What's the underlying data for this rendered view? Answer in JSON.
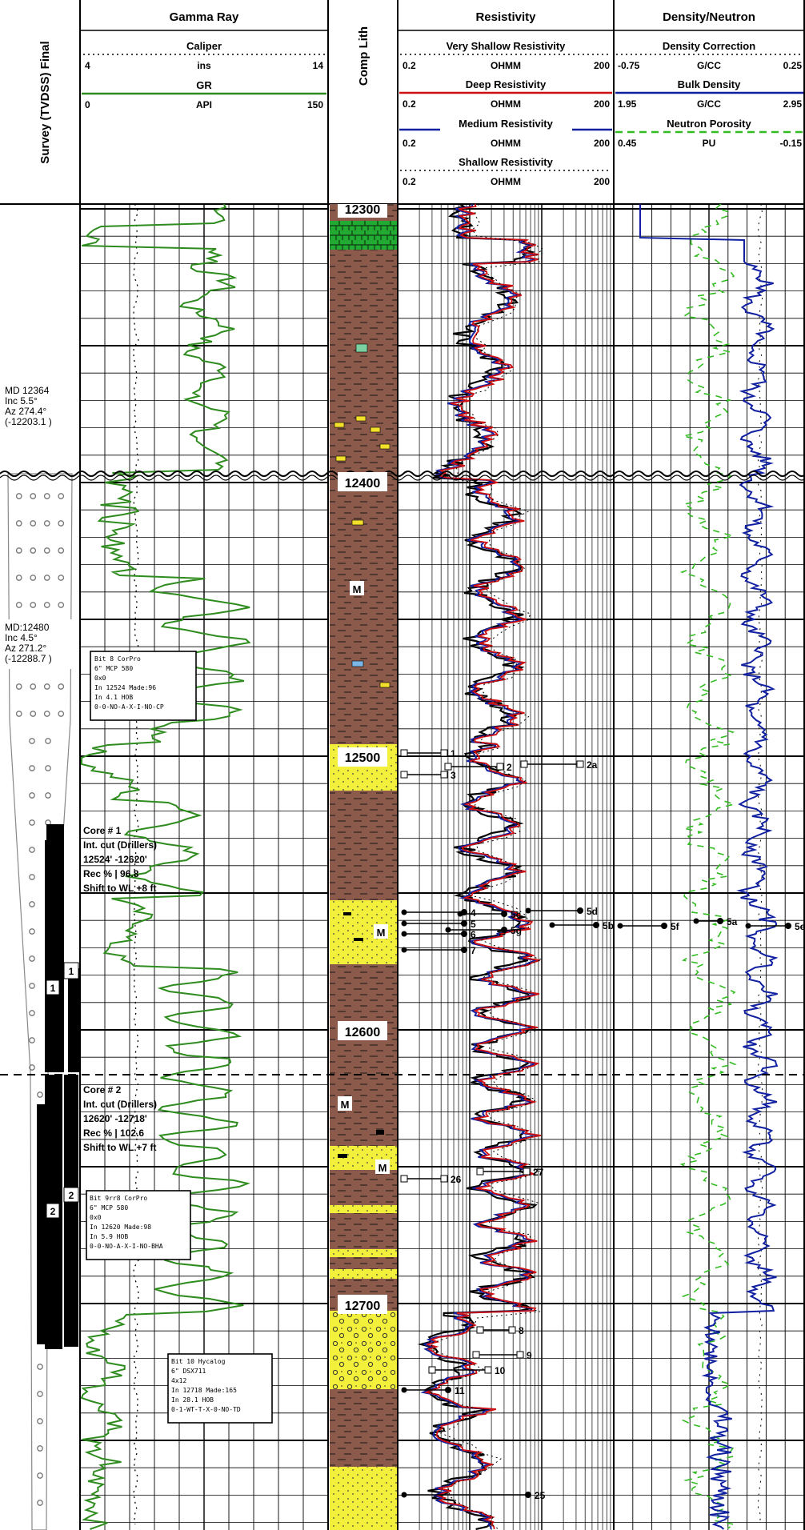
{
  "colors": {
    "gr": "#2e8b1e",
    "neutron": "#33bb22",
    "deep": "#d01010",
    "medium": "#1020a0",
    "shallow": "#000000",
    "bulk_density": "#1020a0",
    "shale": "#8b5a4a",
    "sand": "#f2f03a",
    "limestone": "#22aa33",
    "core": "#000000"
  },
  "tracks": {
    "survey": {
      "title": "Survey (TVDSS) Final"
    },
    "gamma": {
      "title": "Gamma Ray",
      "caliper": {
        "name": "Caliper",
        "min": "4",
        "unit": "ins",
        "max": "14"
      },
      "gr": {
        "name": "GR",
        "min": "0",
        "unit": "API",
        "max": "150"
      }
    },
    "lith": {
      "title": "Comp Lith"
    },
    "resistivity": {
      "title": "Resistivity",
      "very_shallow": {
        "name": "Very Shallow Resistivity",
        "min": "0.2",
        "unit": "OHMM",
        "max": "200"
      },
      "deep": {
        "name": "Deep Resistivity",
        "min": "0.2",
        "unit": "OHMM",
        "max": "200"
      },
      "medium": {
        "name": "Medium Resistivity",
        "min": "0.2",
        "unit": "OHMM",
        "max": "200"
      },
      "shallow": {
        "name": "Shallow Resistivity",
        "min": "0.2",
        "unit": "OHMM",
        "max": "200"
      }
    },
    "density": {
      "title": "Density/Neutron",
      "correction": {
        "name": "Density Correction",
        "min": "-0.75",
        "unit": "G/CC",
        "max": "0.25"
      },
      "bulk": {
        "name": "Bulk Density",
        "min": "1.95",
        "unit": "G/CC",
        "max": "2.95"
      },
      "neutron": {
        "name": "Neutron Porosity",
        "min": "0.45",
        "unit": "PU",
        "max": "-0.15"
      }
    }
  },
  "depths": [
    "12300",
    "12400",
    "12500",
    "12600",
    "12700"
  ],
  "surveys": [
    {
      "md": "MD 12364",
      "inc": "Inc 5.5°",
      "az": "Az 274.4°",
      "tvd": "(-12203.1 )"
    },
    {
      "md": "MD:12480",
      "inc": "Inc 4.5°",
      "az": "Az 271.2°",
      "tvd": "(-12288.7 )"
    }
  ],
  "cores": [
    {
      "title": "Core # 1",
      "cut": "Int. cut (Drillers)",
      "interval": "12524' -12620'",
      "rec": "Rec % | 96.8",
      "shift": "Shift to WL  +8 ft",
      "num": "1"
    },
    {
      "title": "Core # 2",
      "cut": "Int. cut (Drillers)",
      "interval": "12620' -12718'",
      "rec": "Rec % | 102.6",
      "shift": "Shift to WL  +7 ft",
      "num": "2"
    }
  ],
  "bit_boxes": [
    {
      "lines": [
        "Bit 8   CorPro",
        "6\"    MCP 580",
        "0x0",
        "In 12524  Made:96",
        "In 4.1    HOB",
        "0-0-NO-A-X-I-NO-CP"
      ]
    },
    {
      "lines": [
        "Bit 9rr8  CorPro",
        "6\"    MCP 580",
        "0x0",
        "In 12620  Made:98",
        "In 5.9    HOB",
        "0-0-NO-A-X-I-NO-BHA"
      ]
    },
    {
      "lines": [
        "Bit 10   Hycalog",
        "6\"    DSX711",
        "4x12",
        "In 12718  Made:165",
        "In 28.1    HOB",
        "0-1-WT-T-X-0-NO-TD"
      ]
    }
  ],
  "sample_labels": {
    "res": [
      "1",
      "2",
      "3",
      "2a",
      "4",
      "5",
      "6",
      "7",
      "5c",
      "5d",
      "5g",
      "5b",
      "26",
      "27",
      "8",
      "9",
      "10",
      "11",
      "25"
    ],
    "den": [
      "5f",
      "5a",
      "5e"
    ]
  },
  "lith_marks": [
    "M",
    "M",
    "M",
    "M"
  ]
}
